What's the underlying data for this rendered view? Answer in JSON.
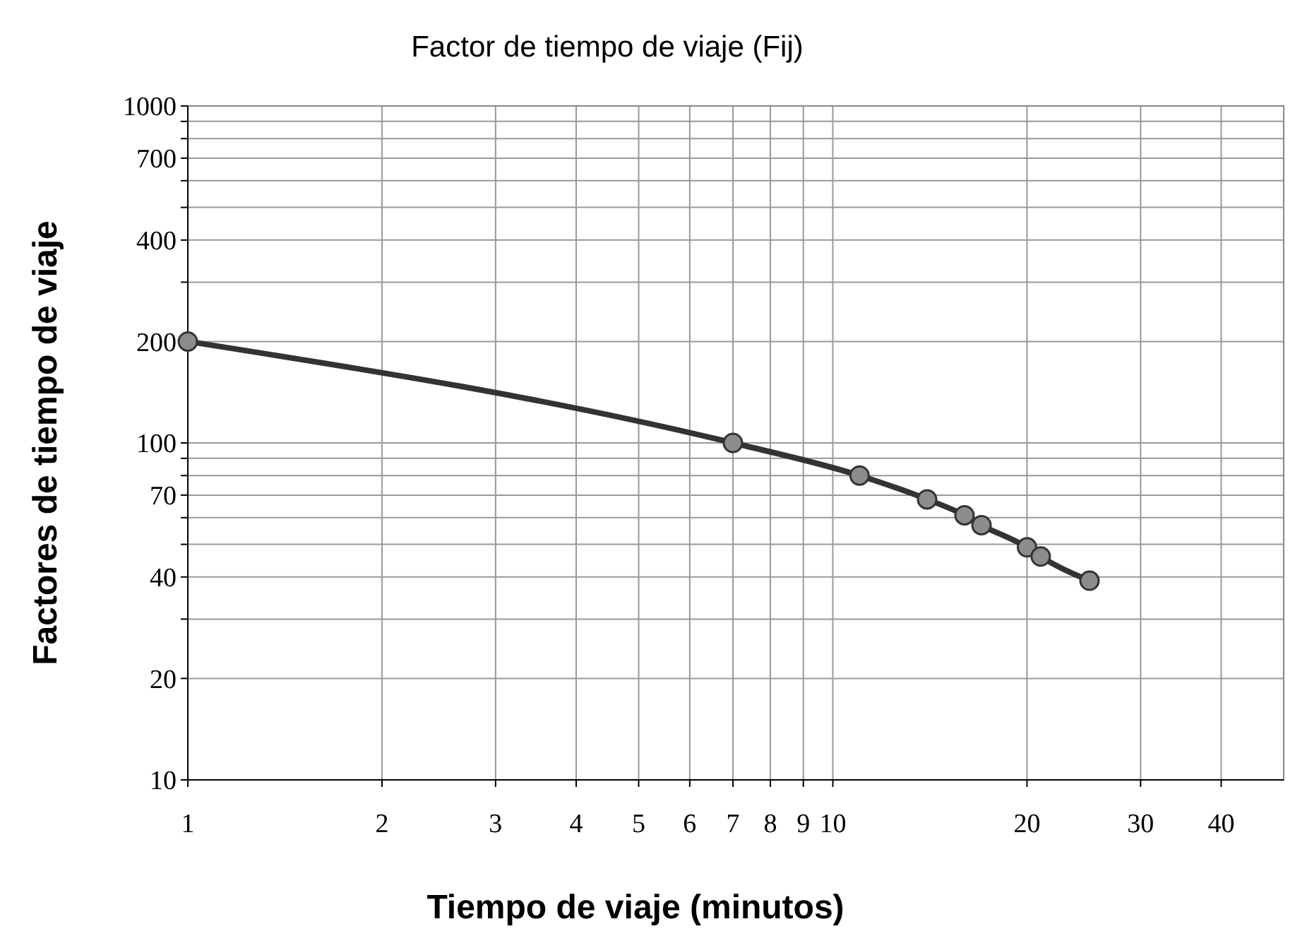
{
  "chart_data": {
    "type": "line",
    "title": "Factor de tiempo de viaje (Fij)",
    "xlabel": "Tiempo de viaje (minutos)",
    "ylabel": "Factores de tiempo de viaje",
    "x": [
      1,
      7,
      11,
      14,
      16,
      17,
      20,
      21,
      25
    ],
    "series": [
      {
        "color": "#333333",
        "values": [
          200,
          100,
          80,
          68,
          61,
          57,
          49,
          46,
          39
        ]
      }
    ],
    "log": "xy",
    "xlim": [
      1,
      50
    ],
    "ylim": [
      10,
      1000
    ],
    "xticks": [
      1,
      2,
      3,
      4,
      5,
      6,
      7,
      8,
      9,
      10,
      20,
      30,
      40
    ],
    "yticks": [
      10,
      20,
      {
        "value": 30,
        "label": null
      },
      40,
      {
        "value": 50,
        "label": null
      },
      {
        "value": 60,
        "label": null
      },
      70,
      {
        "value": 80,
        "label": null
      },
      {
        "value": 90,
        "label": null
      },
      100,
      200,
      {
        "value": 300,
        "label": null
      },
      400,
      {
        "value": 500,
        "label": null
      },
      {
        "value": 600,
        "label": null
      },
      700,
      {
        "value": 800,
        "label": null
      },
      {
        "value": 900,
        "label": null
      },
      1000
    ],
    "grid": true,
    "marker": "circle",
    "line_style": "solid"
  }
}
